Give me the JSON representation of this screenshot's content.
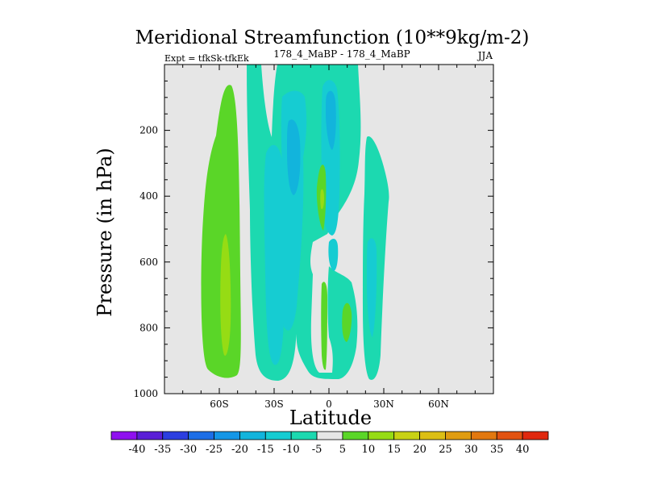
{
  "chart_data": {
    "type": "contour",
    "title": "Meridional Streamfunction (10**9kg/m-2)",
    "subtitle_left": "Expt = tfkSk-tfkEk",
    "subtitle_center": "178_4_MaBP - 178_4_MaBP",
    "subtitle_right": "JJA",
    "xlabel": "Latitude",
    "ylabel": "Pressure (in hPa)",
    "xlim": [
      -90,
      90
    ],
    "ylim": [
      1000,
      0
    ],
    "x_ticks": [
      {
        "value": -60,
        "label": "60S"
      },
      {
        "value": -30,
        "label": "30S"
      },
      {
        "value": 0,
        "label": "0"
      },
      {
        "value": 30,
        "label": "30N"
      },
      {
        "value": 60,
        "label": "60N"
      }
    ],
    "y_ticks": [
      {
        "value": 200,
        "label": "200"
      },
      {
        "value": 400,
        "label": "400"
      },
      {
        "value": 600,
        "label": "600"
      },
      {
        "value": 800,
        "label": "800"
      },
      {
        "value": 1000,
        "label": "1000"
      }
    ],
    "colorbar": {
      "levels": [
        "-40",
        "-35",
        "-30",
        "-25",
        "-20",
        "-15",
        "-10",
        "-5",
        "5",
        "10",
        "15",
        "20",
        "25",
        "30",
        "35",
        "40"
      ],
      "colors": [
        "#8f10ef",
        "#5a1ed6",
        "#2c3ee0",
        "#1d6ee6",
        "#1596e6",
        "#12b4dc",
        "#16ccd2",
        "#1cd9b0",
        "#e6e6e6",
        "#5ad628",
        "#96dc14",
        "#c8d214",
        "#dcbe14",
        "#e09c10",
        "#e2780f",
        "#e25210",
        "#e0280e"
      ]
    },
    "features": [
      {
        "name": "Southern-high-latitude positive cell",
        "level": 5,
        "lat_range": [
          -72,
          -55
        ],
        "p_range": [
          100,
          960
        ]
      },
      {
        "name": "Southern-high-latitude positive core",
        "level": 10,
        "lat_range": [
          -66,
          -61
        ],
        "p_range": [
          530,
          900
        ]
      },
      {
        "name": "Southern subtropical negative band",
        "level": -5,
        "lat_range": [
          -45,
          -25
        ],
        "p_range": [
          50,
          960
        ]
      },
      {
        "name": "Equatorial negative core",
        "level": -15,
        "lat_range": [
          -4,
          5
        ],
        "p_range": [
          130,
          360
        ]
      },
      {
        "name": "Equatorial positive cell",
        "level": 5,
        "lat_range": [
          -6,
          -1
        ],
        "p_range": [
          330,
          480
        ]
      },
      {
        "name": "Northern subtropical negative band",
        "level": -5,
        "lat_range": [
          18,
          30
        ],
        "p_range": [
          250,
          960
        ]
      }
    ]
  }
}
